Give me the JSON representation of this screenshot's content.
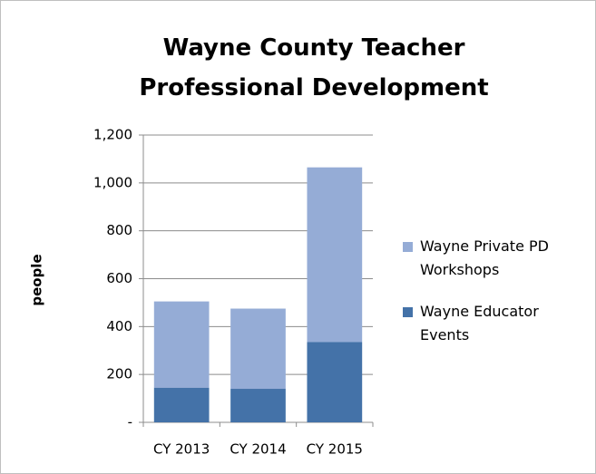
{
  "chart_data": {
    "type": "bar",
    "stacked": true,
    "title": "Wayne County Teacher Professional Development",
    "y_label": "people",
    "categories": [
      "CY 2013",
      "CY 2014",
      "CY 2015"
    ],
    "series": [
      {
        "name": "Wayne Educator Events",
        "color": "#4472a8",
        "values": [
          145,
          140,
          335
        ]
      },
      {
        "name": "Wayne Private PD Workshops",
        "color": "#95acd6",
        "values": [
          360,
          335,
          730
        ]
      }
    ],
    "ylim": [
      0,
      1200
    ],
    "yticks": [
      {
        "value": 0,
        "label": "-"
      },
      200,
      400,
      600,
      800,
      {
        "value": 1000,
        "label": "1,000"
      },
      {
        "value": 1200,
        "label": "1,200"
      }
    ],
    "grid": true,
    "legend": "right"
  }
}
